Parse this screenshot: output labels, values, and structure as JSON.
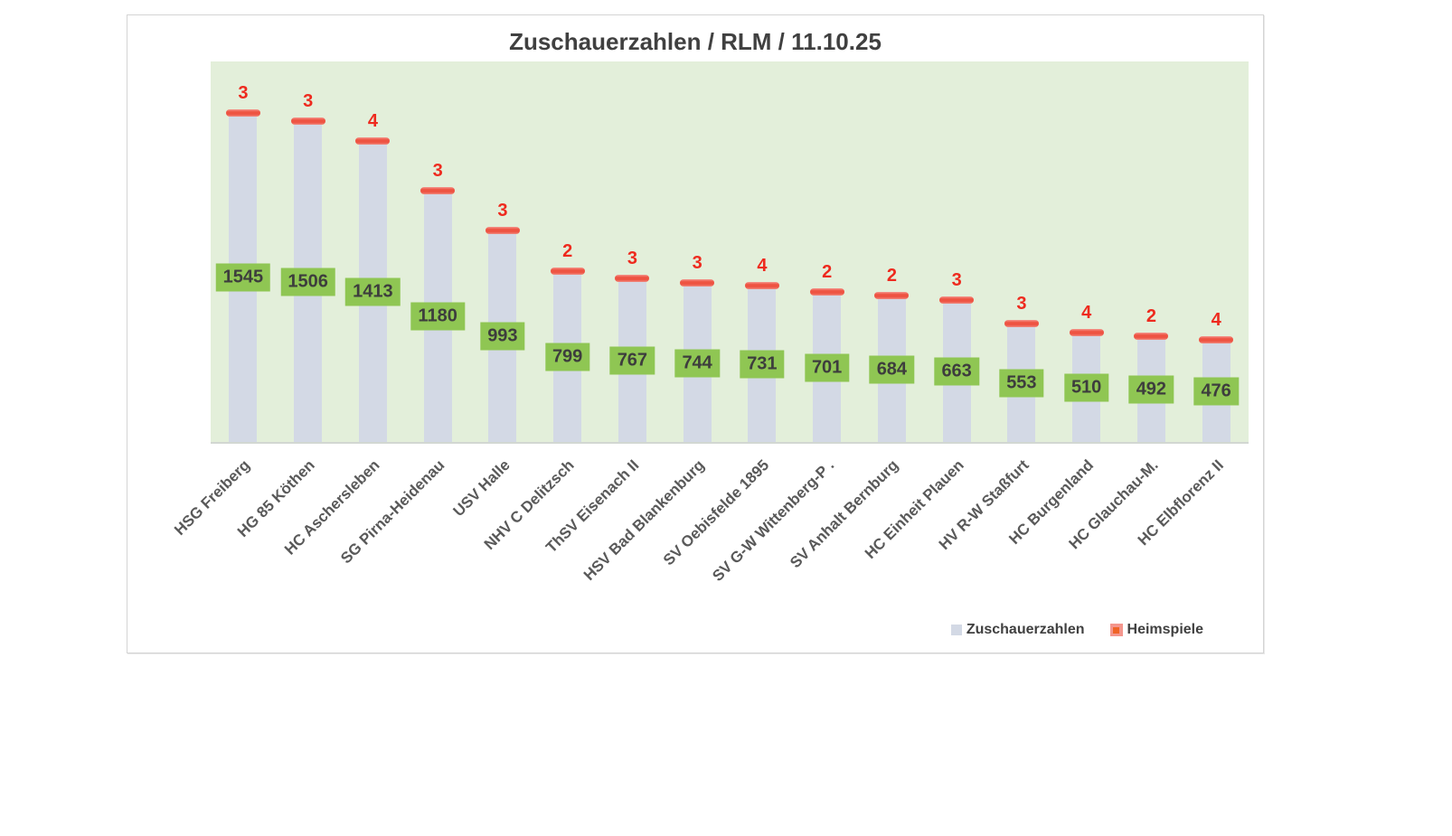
{
  "chart_data": {
    "type": "bar",
    "title": "Zuschauerzahlen / RLM / 11.10.25",
    "categories": [
      "HSG Freiberg",
      "HG 85 Köthen",
      "HC Aschersleben",
      "SG Pirna-Heidenau",
      "USV Halle",
      "NHV C Delitzsch",
      "ThSV Eisenach II",
      "HSV Bad Blankenburg",
      "SV Oebisfelde 1895",
      "SV G-W Wittenberg-P .",
      "SV Anhalt Bernburg",
      "HC Einheit Plauen",
      "HV R-W Staßfurt",
      "HC Burgenland",
      "HC Glauchau-M.",
      "HC Elbflorenz II"
    ],
    "series": [
      {
        "name": "Zuschauerzahlen",
        "type": "bar",
        "values": [
          1545,
          1506,
          1413,
          1180,
          993,
          799,
          767,
          744,
          731,
          701,
          684,
          663,
          553,
          510,
          492,
          476
        ]
      },
      {
        "name": "Heimspiele",
        "type": "marker",
        "values": [
          3,
          3,
          4,
          3,
          3,
          2,
          3,
          3,
          4,
          2,
          2,
          3,
          3,
          4,
          2,
          4
        ]
      }
    ],
    "xlabel": "",
    "ylabel": "",
    "ylim": [
      0,
      1800
    ],
    "grid": false,
    "legend_position": "bottom-right",
    "colors": {
      "plot_background": "#e3efda",
      "bar_fill": "#d3d9e5",
      "value_label_background": "#8fc653",
      "value_label_text": "#3d3d3d",
      "marker_fill": "#ee5342",
      "marker_light": "#f4968d",
      "count_text": "#ee2a1e",
      "axis_label_text": "#595959",
      "title_text": "#404040"
    }
  }
}
